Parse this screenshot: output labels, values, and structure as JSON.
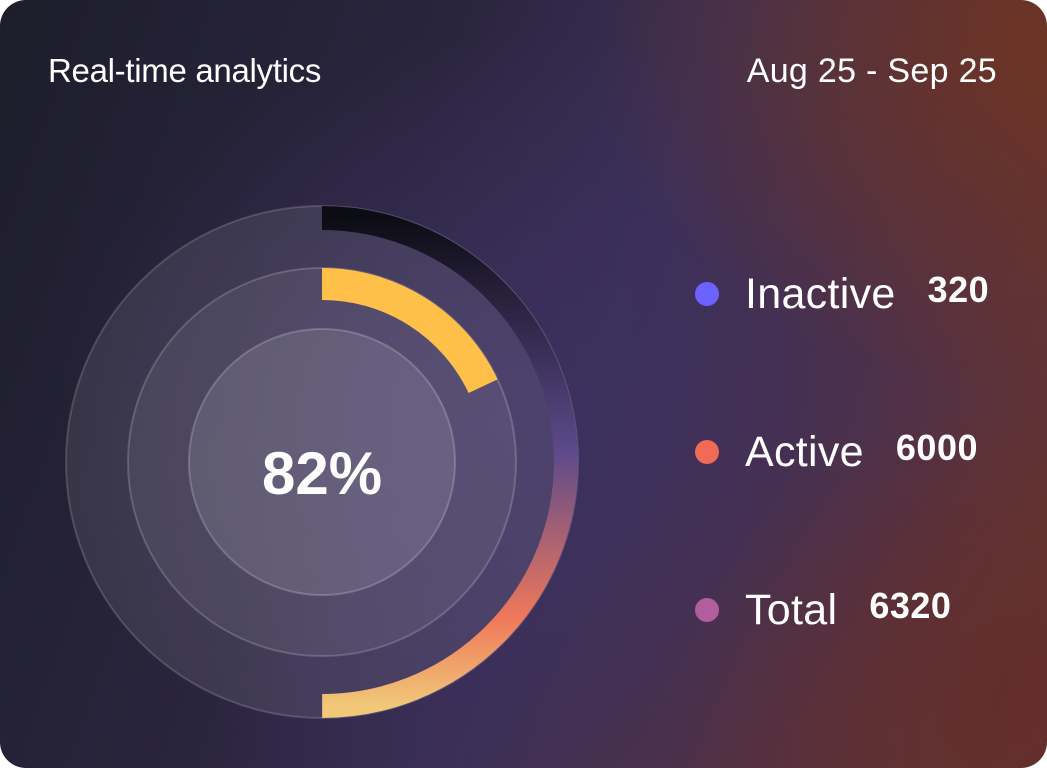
{
  "header": {
    "title": "Real-time analytics",
    "date_range": "Aug 25 - Sep 25"
  },
  "colors": {
    "inactive": "#6b63ff",
    "active": "#f06a55",
    "total": "#b25d9e",
    "inner_arc": "#ffc04a",
    "outer_arc_start": "#0c0c14",
    "outer_arc_mid": "#5d4a8a",
    "outer_arc_low": "#f0785a",
    "outer_arc_end": "#f0c878"
  },
  "chart_data": {
    "type": "radial-gauge",
    "center_label": "82%",
    "rings": [
      {
        "ring": "outer",
        "fraction": 0.5
      },
      {
        "ring": "inner",
        "fraction": 0.18
      }
    ],
    "legend": [
      {
        "label": "Inactive",
        "value": "320"
      },
      {
        "label": "Active",
        "value": "6000"
      },
      {
        "label": "Total",
        "value": "6320"
      }
    ]
  }
}
